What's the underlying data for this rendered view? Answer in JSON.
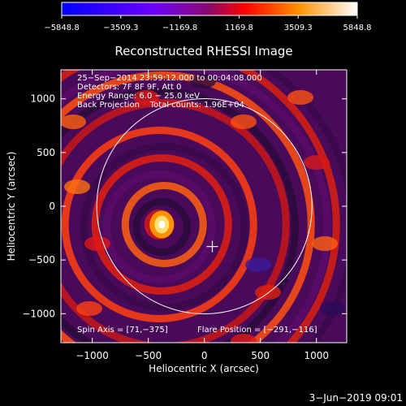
{
  "chart_data": {
    "type": "heatmap",
    "title": "Reconstructed RHESSI Image",
    "xlabel": "Heliocentric X (arcsec)",
    "ylabel": "Heliocentric Y (arcsec)",
    "xlim": [
      -1280,
      1270
    ],
    "ylim": [
      -1270,
      1270
    ],
    "x_ticks": [
      -1000,
      -500,
      0,
      500,
      1000
    ],
    "y_ticks": [
      1000,
      500,
      0,
      -500,
      -1000
    ],
    "x_tick_labels": [
      "−1000",
      "−500",
      "0",
      "500",
      "1000"
    ],
    "y_tick_labels": [
      "1000",
      "500",
      "0",
      "−500",
      "−1000"
    ],
    "colorbar": {
      "min": -5848.8,
      "max": 5848.8,
      "tick_values": [
        -5848.8,
        -3509.3,
        -1169.8,
        1169.8,
        3509.3,
        5848.8
      ],
      "tick_labels": [
        "−5848.8",
        "−3509.3",
        "−1169.8",
        "1169.8",
        "3509.3",
        "5848.8"
      ],
      "colors": [
        "#0000ff",
        "#7a00ff",
        "#ff0000",
        "#ff8800",
        "#ffffff"
      ]
    },
    "annotations": [
      "25−Sep−2014 23:59:12.000 to 00:04:08.000",
      "Detectors: 7F 8F 9F, Att 0",
      "Energy Range: 6.0 − 25.0 keV",
      "Back Projection    Total counts: 1.96E+04"
    ],
    "spin_axis_label": "Spin Axis = [71,−375]",
    "flare_position_label": "Flare Position = [−291,−116]",
    "solar_limb": {
      "center": [
        0,
        0
      ],
      "radius": 960
    },
    "cross_marker": [
      71,
      -375
    ],
    "peak_source": {
      "x": -380,
      "y": -170,
      "value": 5848.8
    }
  },
  "footer": {
    "date": "3−Jun−2019 09:01"
  }
}
